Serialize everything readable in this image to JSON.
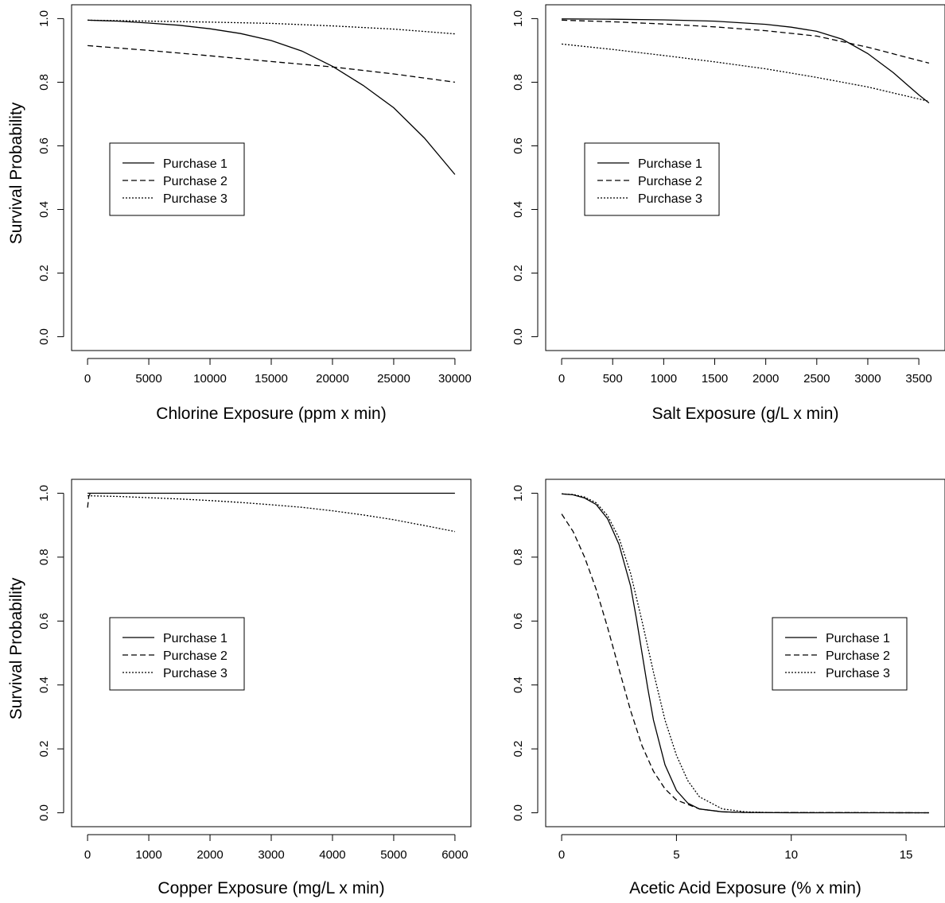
{
  "figure": {
    "ylabel": "Survival Probability"
  },
  "chart_data": [
    {
      "type": "line",
      "xlabel": "Chlorine Exposure (ppm x min)",
      "ylabel": "Survival Probability",
      "xlim": [
        0,
        30000
      ],
      "ylim": [
        0,
        1
      ],
      "xticks": [
        0,
        5000,
        10000,
        15000,
        20000,
        25000,
        30000
      ],
      "yticks": [
        0,
        0.2,
        0.4,
        0.6,
        0.8,
        1
      ],
      "legend": "center-left",
      "grid": false,
      "series": [
        {
          "name": "Purchase 1",
          "style": "solid",
          "x": [
            0,
            2500,
            5000,
            7500,
            10000,
            12500,
            15000,
            17500,
            20000,
            22500,
            25000,
            27500,
            30000
          ],
          "y": [
            0.995,
            0.992,
            0.986,
            0.979,
            0.968,
            0.953,
            0.931,
            0.898,
            0.85,
            0.79,
            0.72,
            0.625,
            0.51
          ]
        },
        {
          "name": "Purchase 2",
          "style": "dashed",
          "x": [
            0,
            5000,
            10000,
            15000,
            20000,
            25000,
            30000
          ],
          "y": [
            0.915,
            0.9,
            0.883,
            0.865,
            0.848,
            0.826,
            0.8
          ]
        },
        {
          "name": "Purchase 3",
          "style": "dotted",
          "x": [
            0,
            5000,
            10000,
            15000,
            20000,
            25000,
            30000
          ],
          "y": [
            0.995,
            0.992,
            0.989,
            0.985,
            0.977,
            0.967,
            0.952
          ]
        }
      ]
    },
    {
      "type": "line",
      "xlabel": "Salt Exposure (g/L x min)",
      "ylabel": "",
      "xlim": [
        0,
        3600
      ],
      "ylim": [
        0,
        1
      ],
      "xticks": [
        0,
        500,
        1000,
        1500,
        2000,
        2500,
        3000,
        3500
      ],
      "yticks": [
        0,
        0.2,
        0.4,
        0.6,
        0.8,
        1
      ],
      "legend": "center-left",
      "grid": false,
      "series": [
        {
          "name": "Purchase 1",
          "style": "solid",
          "x": [
            0,
            500,
            1000,
            1500,
            2000,
            2250,
            2500,
            2750,
            3000,
            3250,
            3500,
            3600
          ],
          "y": [
            0.999,
            0.998,
            0.996,
            0.992,
            0.982,
            0.973,
            0.96,
            0.935,
            0.89,
            0.83,
            0.76,
            0.735
          ]
        },
        {
          "name": "Purchase 2",
          "style": "dashed",
          "x": [
            0,
            500,
            1000,
            1500,
            2000,
            2500,
            3000,
            3600
          ],
          "y": [
            0.995,
            0.99,
            0.983,
            0.974,
            0.962,
            0.945,
            0.91,
            0.86
          ]
        },
        {
          "name": "Purchase 3",
          "style": "dotted",
          "x": [
            0,
            500,
            1000,
            1500,
            2000,
            2500,
            3000,
            3600
          ],
          "y": [
            0.92,
            0.903,
            0.884,
            0.864,
            0.842,
            0.815,
            0.785,
            0.74
          ]
        }
      ]
    },
    {
      "type": "line",
      "xlabel": "Copper Exposure (mg/L x min)",
      "ylabel": "Survival Probability",
      "xlim": [
        0,
        6000
      ],
      "ylim": [
        0,
        1
      ],
      "xticks": [
        0,
        1000,
        2000,
        3000,
        4000,
        5000,
        6000
      ],
      "yticks": [
        0,
        0.2,
        0.4,
        0.6,
        0.8,
        1
      ],
      "legend": "center-left",
      "grid": false,
      "series": [
        {
          "name": "Purchase 1",
          "style": "solid",
          "x": [
            0,
            3000,
            6000
          ],
          "y": [
            1.0,
            1.0,
            1.0
          ]
        },
        {
          "name": "Purchase 2",
          "style": "dashed",
          "x": [
            0,
            20,
            40,
            60
          ],
          "y": [
            0.955,
            0.99,
            0.998,
            1.0
          ]
        },
        {
          "name": "Purchase 3",
          "style": "dotted",
          "x": [
            0,
            500,
            1000,
            1500,
            2000,
            2500,
            3000,
            3500,
            4000,
            4500,
            5000,
            5500,
            6000
          ],
          "y": [
            0.992,
            0.99,
            0.986,
            0.982,
            0.977,
            0.971,
            0.964,
            0.956,
            0.945,
            0.932,
            0.917,
            0.899,
            0.88
          ]
        }
      ]
    },
    {
      "type": "line",
      "xlabel": "Acetic Acid Exposure (% x min)",
      "ylabel": "",
      "xlim": [
        0,
        16
      ],
      "ylim": [
        0,
        1
      ],
      "xticks": [
        0,
        5,
        10,
        15
      ],
      "yticks": [
        0,
        0.2,
        0.4,
        0.6,
        0.8,
        1
      ],
      "legend": "center-right",
      "grid": false,
      "series": [
        {
          "name": "Purchase 1",
          "style": "solid",
          "x": [
            0,
            0.5,
            1,
            1.5,
            2,
            2.5,
            3,
            3.25,
            3.5,
            3.75,
            4,
            4.5,
            5,
            5.5,
            6,
            7,
            8,
            10,
            16
          ],
          "y": [
            0.998,
            0.995,
            0.985,
            0.965,
            0.92,
            0.84,
            0.71,
            0.61,
            0.5,
            0.39,
            0.29,
            0.15,
            0.07,
            0.03,
            0.012,
            0.003,
            0.001,
            0.0,
            0.0
          ]
        },
        {
          "name": "Purchase 2",
          "style": "dashed",
          "x": [
            0,
            0.5,
            1,
            1.5,
            2,
            2.5,
            3,
            3.5,
            4,
            4.5,
            5,
            6,
            7,
            8,
            16
          ],
          "y": [
            0.935,
            0.88,
            0.8,
            0.7,
            0.58,
            0.45,
            0.32,
            0.21,
            0.13,
            0.075,
            0.04,
            0.012,
            0.003,
            0.001,
            0.0
          ]
        },
        {
          "name": "Purchase 3",
          "style": "dotted",
          "x": [
            0,
            0.5,
            1,
            1.5,
            2,
            2.5,
            3,
            3.5,
            4,
            4.5,
            5,
            5.5,
            6,
            7,
            8,
            9,
            16
          ],
          "y": [
            0.998,
            0.996,
            0.988,
            0.97,
            0.93,
            0.86,
            0.75,
            0.6,
            0.44,
            0.29,
            0.18,
            0.1,
            0.05,
            0.012,
            0.003,
            0.001,
            0.0
          ]
        }
      ]
    }
  ]
}
